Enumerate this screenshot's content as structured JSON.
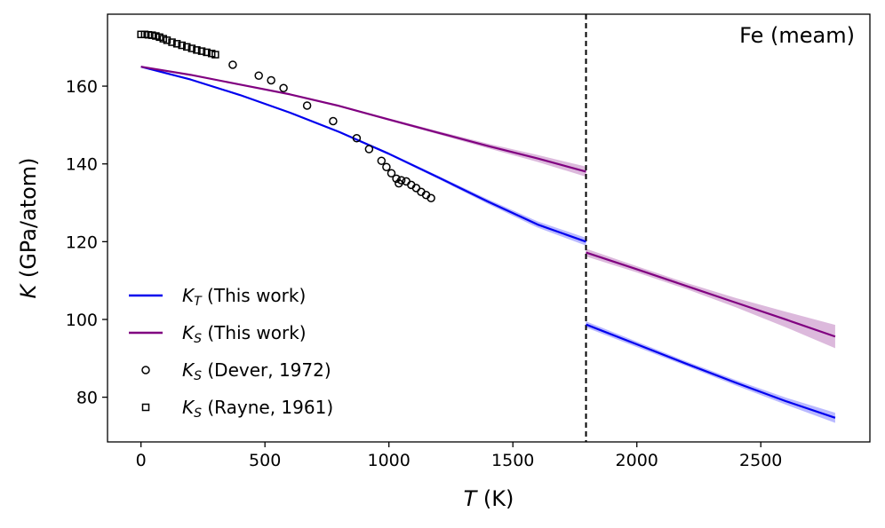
{
  "chart_data": {
    "type": "line",
    "annotation": "Fe (meam)",
    "xlabel": {
      "var": "T",
      "unit": " (K)"
    },
    "ylabel": {
      "var": "K",
      "unit": " (GPa/atom)"
    },
    "xlim": [
      -135,
      2940
    ],
    "ylim": [
      68.5,
      178.5
    ],
    "xticks": [
      0,
      500,
      1000,
      1500,
      2000,
      2500
    ],
    "yticks": [
      80,
      100,
      120,
      140,
      160
    ],
    "grid": false,
    "legend_position": "lower-left",
    "vline_x": 1795,
    "colors": {
      "KT": "#0000ee",
      "KS": "#800080",
      "band_KT": "#8080ff",
      "band_KS": "#c080c0",
      "markers": "#000000"
    },
    "series": [
      {
        "key": "KT_solid",
        "legend_index": 0,
        "color": "#0000ee",
        "x": [
          0,
          200,
          400,
          600,
          800,
          1000,
          1200,
          1400,
          1600,
          1795
        ],
        "y": [
          165,
          161.7,
          157.7,
          153.2,
          148.2,
          142.6,
          136.5,
          130.3,
          124.4,
          120.0
        ],
        "band": [
          0,
          0,
          0.1,
          0.1,
          0.2,
          0.3,
          0.4,
          0.6,
          0.8,
          1.0
        ]
      },
      {
        "key": "KT_liquid",
        "legend_index": 0,
        "color": "#0000ee",
        "x": [
          1795,
          2000,
          2200,
          2400,
          2600,
          2800
        ],
        "y": [
          98.7,
          93.6,
          88.6,
          83.7,
          79.0,
          74.7
        ],
        "band": [
          0.8,
          0.7,
          0.6,
          0.7,
          0.9,
          1.3
        ]
      },
      {
        "key": "KS_solid",
        "legend_index": 1,
        "color": "#800080",
        "x": [
          0,
          200,
          400,
          600,
          800,
          1000,
          1200,
          1400,
          1600,
          1795
        ],
        "y": [
          165,
          162.9,
          160.4,
          157.9,
          154.9,
          151.4,
          148.0,
          144.6,
          141.4,
          138.0
        ],
        "band": [
          0,
          0,
          0.1,
          0.1,
          0.2,
          0.3,
          0.4,
          0.6,
          0.9,
          1.3
        ]
      },
      {
        "key": "KS_liquid",
        "legend_index": 1,
        "color": "#800080",
        "x": [
          1795,
          2000,
          2200,
          2400,
          2600,
          2800
        ],
        "y": [
          117.2,
          112.9,
          108.6,
          104.3,
          100.0,
          95.6
        ],
        "band": [
          1.0,
          0.8,
          0.8,
          1.2,
          2.0,
          3.0
        ]
      },
      {
        "key": "KS_Dever",
        "legend_index": 2,
        "marker": "circle",
        "x": [
          370,
          475,
          525,
          575,
          670,
          775,
          870,
          920,
          970,
          990,
          1010,
          1030,
          1040,
          1050,
          1070,
          1090,
          1110,
          1130,
          1150,
          1170
        ],
        "y": [
          165.5,
          162.7,
          161.5,
          159.5,
          155.0,
          151.0,
          146.6,
          143.8,
          140.8,
          139.2,
          137.6,
          136.2,
          135.0,
          135.8,
          135.5,
          134.6,
          133.8,
          132.8,
          132.0,
          131.2
        ]
      },
      {
        "key": "KS_Rayne",
        "legend_index": 3,
        "marker": "square",
        "x": [
          0,
          15,
          30,
          45,
          60,
          75,
          90,
          105,
          125,
          145,
          165,
          185,
          205,
          225,
          245,
          265,
          285,
          300
        ],
        "y": [
          173.3,
          173.3,
          173.2,
          173.1,
          172.9,
          172.6,
          172.2,
          171.8,
          171.3,
          170.9,
          170.5,
          170.1,
          169.7,
          169.3,
          169.0,
          168.7,
          168.4,
          168.1
        ]
      }
    ],
    "legend": [
      {
        "var": "K",
        "sub": "T",
        "text": " (This work)",
        "kind": "line",
        "color": "#0000ee"
      },
      {
        "var": "K",
        "sub": "S",
        "text": " (This work)",
        "kind": "line",
        "color": "#800080"
      },
      {
        "var": "K",
        "sub": "S",
        "text": " (Dever, 1972)",
        "kind": "circle",
        "color": "#000000"
      },
      {
        "var": "K",
        "sub": "S",
        "text": " (Rayne, 1961)",
        "kind": "square",
        "color": "#000000"
      }
    ]
  }
}
